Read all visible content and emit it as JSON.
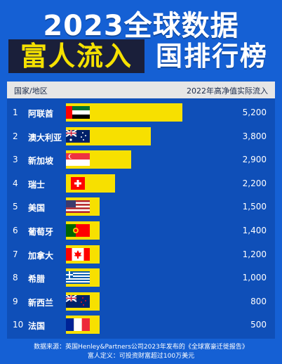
{
  "title": {
    "line1": "2023全球数据",
    "highlight": "富人流入",
    "rest": "国排行榜"
  },
  "header": {
    "col_country": "国家/地区",
    "col_value": "2022年高净值实际流入"
  },
  "footer": {
    "line1": "数据来源：英国Henley&Partners公司2023年发布的《全球富豪迁徙报告》",
    "line2": "富人定义：可投资财富超过100万美元"
  },
  "chart_data": {
    "type": "bar",
    "title": "2023全球数据 富人流入国排行榜",
    "ylabel": "2022年高净值实际流入",
    "categories": [
      "阿联酋",
      "澳大利亚",
      "新加坡",
      "瑞士",
      "美国",
      "葡萄牙",
      "加拿大",
      "希腊",
      "新西兰",
      "法国"
    ],
    "ranks": [
      "1",
      "2",
      "3",
      "4",
      "5",
      "6",
      "7",
      "8",
      "9",
      "10"
    ],
    "values": [
      5200,
      3800,
      2900,
      2200,
      1500,
      1400,
      1200,
      1000,
      800,
      500
    ],
    "value_labels": [
      "5,200",
      "3,800",
      "2,900",
      "2,200",
      "1,500",
      "1,400",
      "1,200",
      "1,000",
      "800",
      "500"
    ],
    "flag_icons": [
      "uae-flag-icon",
      "australia-flag-icon",
      "singapore-flag-icon",
      "switzerland-flag-icon",
      "usa-flag-icon",
      "portugal-flag-icon",
      "canada-flag-icon",
      "greece-flag-icon",
      "new-zealand-flag-icon",
      "france-flag-icon"
    ],
    "bar_color": "#f7e000",
    "background_color": "#1560d4"
  }
}
